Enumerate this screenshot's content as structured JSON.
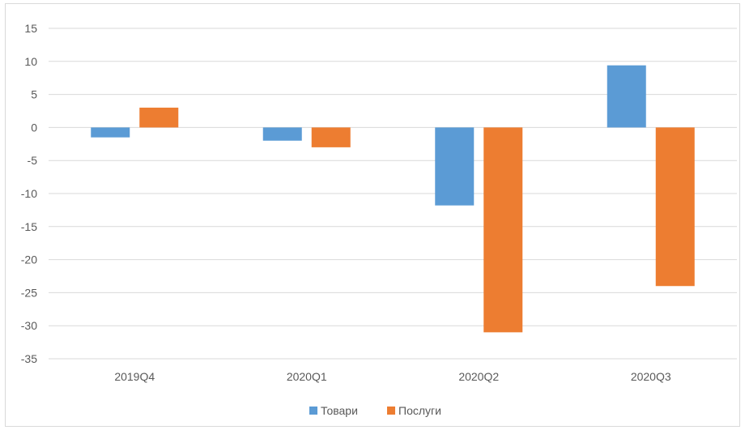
{
  "chart_data": {
    "type": "bar",
    "categories": [
      "2019Q4",
      "2020Q1",
      "2020Q2",
      "2020Q3"
    ],
    "series": [
      {
        "name": "Товари",
        "values": [
          -1.5,
          -2,
          -11.8,
          9.4
        ],
        "color": "#5b9bd5"
      },
      {
        "name": "Послуги",
        "values": [
          3,
          -3,
          -31,
          -24
        ],
        "color": "#ed7d31"
      }
    ],
    "ylim": [
      -35,
      15
    ],
    "yticks": [
      "15",
      "10",
      "5",
      "0",
      "-5",
      "-10",
      "-15",
      "-20",
      "-25",
      "-30",
      "-35"
    ],
    "grid": true,
    "legend_position": "bottom-center",
    "gridline_color": "#d9d9d9",
    "text_color": "#595959"
  }
}
